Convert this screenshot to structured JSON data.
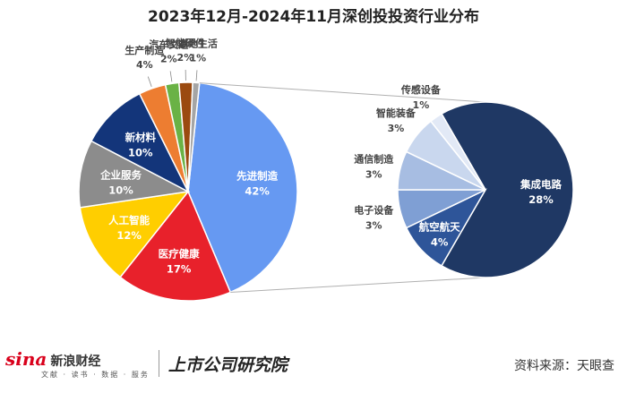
{
  "chart_data": [
    {
      "type": "pie",
      "title": "2023年12月-2024年11月深创投投资行业分布",
      "slices": [
        {
          "label": "先进制造",
          "value": 42,
          "display": "42%",
          "color": "#6699f2"
        },
        {
          "label": "医疗健康",
          "value": 17,
          "display": "17%",
          "color": "#e8212b"
        },
        {
          "label": "人工智能",
          "value": 12,
          "display": "12%",
          "color": "#ffce00"
        },
        {
          "label": "企业服务",
          "value": 10,
          "display": "10%",
          "color": "#8c8c8c"
        },
        {
          "label": "新材料",
          "value": 10,
          "display": "10%",
          "color": "#13357a"
        },
        {
          "label": "生产制造",
          "value": 4,
          "display": "4%",
          "color": "#ed7d31"
        },
        {
          "label": "汽车交通",
          "value": 2,
          "display": "2%",
          "color": "#6ab245"
        },
        {
          "label": "智能硬件",
          "value": 2,
          "display": "2%",
          "color": "#9b4a10"
        },
        {
          "label": "本地生活",
          "value": 1,
          "display": "1%",
          "color": "#a5a5a5"
        }
      ]
    },
    {
      "type": "pie",
      "slices": [
        {
          "label": "集成电路",
          "value": 28,
          "display": "28%",
          "color": "#1f3864"
        },
        {
          "label": "航空航天",
          "value": 4,
          "display": "4%",
          "color": "#2e5599"
        },
        {
          "label": "电子设备",
          "value": 3,
          "display": "3%",
          "color": "#7f9fd4"
        },
        {
          "label": "通信制造",
          "value": 3,
          "display": "3%",
          "color": "#a7bde2"
        },
        {
          "label": "智能装备",
          "value": 3,
          "display": "3%",
          "color": "#c9d7ee"
        },
        {
          "label": "传感设备",
          "value": 1,
          "display": "1%",
          "color": "#e2e9f6"
        }
      ]
    }
  ],
  "footer": {
    "sina_word": "sina",
    "sina_brand": "新浪财经",
    "sina_sub": "文献 · 读书 · 数据 · 服务",
    "research_name": "上市公司研究院",
    "source": "资料来源：天眼查"
  }
}
